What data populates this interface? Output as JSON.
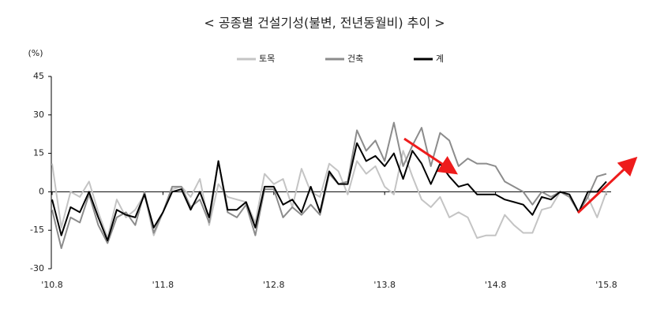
{
  "chart_data": {
    "type": "line",
    "title": "< 공종별 건설기성(불변, 전년동월비) 추이 >",
    "y_label": "(%)",
    "categories": [
      "'10.8",
      null,
      null,
      null,
      null,
      null,
      null,
      null,
      null,
      null,
      null,
      null,
      "'11.8",
      null,
      null,
      null,
      null,
      null,
      null,
      null,
      null,
      null,
      null,
      null,
      "'12.8",
      null,
      null,
      null,
      null,
      null,
      null,
      null,
      null,
      null,
      null,
      null,
      "'13.8",
      null,
      null,
      null,
      null,
      null,
      null,
      null,
      null,
      null,
      null,
      null,
      "'14.8",
      null,
      null,
      null,
      null,
      null,
      null,
      null,
      null,
      null,
      null,
      null,
      "'15.8"
    ],
    "series": [
      {
        "name": "토목",
        "color": "#c4c4c4",
        "width": 2,
        "values": [
          11,
          -14,
          0,
          -2,
          4,
          -8,
          -18,
          -3,
          -10,
          -7,
          -1,
          -17,
          -8,
          1,
          2,
          -2,
          5,
          -13,
          3,
          -2,
          -3,
          -4,
          -12,
          7,
          3,
          5,
          -6,
          9,
          0,
          -2,
          11,
          8,
          -1,
          12,
          7,
          10,
          2,
          -1,
          16,
          6,
          -3,
          -6,
          -2,
          -10,
          -8,
          -10,
          -18,
          -17,
          -17,
          -9,
          -13,
          -16,
          -16,
          -7,
          -6,
          0,
          -2,
          -8,
          -2,
          -10,
          0
        ]
      },
      {
        "name": "건축",
        "color": "#8c8c8c",
        "width": 2,
        "values": [
          -7,
          -22,
          -10,
          -12,
          -1,
          -13,
          -20,
          -10,
          -8,
          -13,
          0,
          -16,
          -8,
          2,
          2,
          -6,
          -3,
          -12,
          12,
          -8,
          -10,
          -5,
          -17,
          1,
          1,
          -10,
          -6,
          -9,
          -5,
          -9,
          7,
          3,
          4,
          24,
          16,
          20,
          12,
          27,
          10,
          18,
          25,
          10,
          23,
          20,
          10,
          13,
          11,
          11,
          10,
          4,
          2,
          0,
          -5,
          0,
          -2,
          0,
          -2,
          -8,
          -2,
          6,
          7
        ]
      },
      {
        "name": "계",
        "color": "#000000",
        "width": 2,
        "values": [
          -3,
          -17,
          -6,
          -8,
          0,
          -10,
          -19,
          -7,
          -9,
          -10,
          -1,
          -14,
          -8,
          0,
          1,
          -7,
          0,
          -10,
          12,
          -7,
          -7,
          -4,
          -14,
          2,
          2,
          -5,
          -3,
          -8,
          2,
          -8,
          8,
          3,
          3,
          19,
          12,
          14,
          10,
          15,
          5,
          16,
          11,
          3,
          11,
          6,
          2,
          3,
          -1,
          -1,
          -1,
          -3,
          -4,
          -5,
          -9,
          -2,
          -3,
          0,
          -1,
          -8,
          0,
          0,
          4
        ]
      }
    ],
    "ylim": [
      -30,
      45
    ],
    "yticks": [
      -30,
      -15,
      0,
      15,
      30,
      45
    ],
    "legend_position": "top"
  }
}
